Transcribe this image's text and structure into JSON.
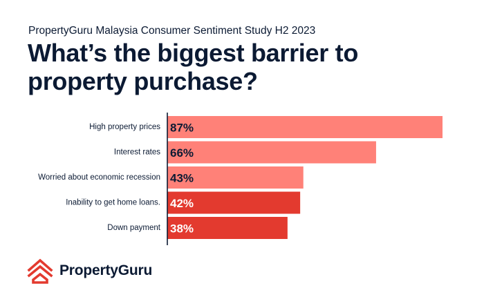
{
  "header": {
    "subtitle": "PropertyGuru Malaysia Consumer Sentiment Study H2 2023",
    "title": "What’s the biggest barrier to property purchase?"
  },
  "brand": {
    "name": "PropertyGuru",
    "logo_icon": "propertyguru-logo-icon",
    "color": "#e33a2f"
  },
  "chart_data": {
    "type": "bar",
    "orientation": "horizontal",
    "categories": [
      "High property prices",
      "Interest rates",
      "Worried about economic recession",
      "Inability to get home loans.",
      "Down payment"
    ],
    "values": [
      87,
      66,
      43,
      42,
      38
    ],
    "value_labels": [
      "87%",
      "66%",
      "43%",
      "42%",
      "38%"
    ],
    "colors": [
      "#ff8178",
      "#ff8178",
      "#ff8178",
      "#e33a2f",
      "#e33a2f"
    ],
    "label_colors": [
      "#0b1a33",
      "#0b1a33",
      "#0b1a33",
      "#ffffff",
      "#ffffff"
    ],
    "xlim": [
      0,
      87
    ],
    "grid": false,
    "title": "What’s the biggest barrier to property purchase?",
    "xlabel": "",
    "ylabel": ""
  }
}
